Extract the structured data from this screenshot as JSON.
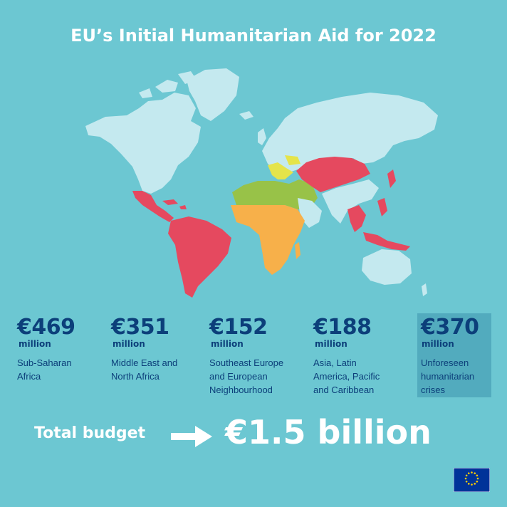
{
  "title": "EU’s Initial Humanitarian Aid for 2022",
  "colors": {
    "background": "#6cc7d2",
    "land": "#c4e9ef",
    "sub_saharan_africa": "#f7b04a",
    "middle_east_north_africa": "#98c248",
    "southeast_europe": "#e5e44a",
    "asia_latam_pacific": "#e5495f",
    "highlight_box": "#52abbe",
    "navy_text": "#0c3f7a",
    "eu_blue": "#003399",
    "eu_gold": "#ffcc00"
  },
  "allocations": [
    {
      "amount": "€469",
      "unit": "million",
      "region": [
        "Sub-Saharan",
        "Africa"
      ]
    },
    {
      "amount": "€351",
      "unit": "million",
      "region": [
        "Middle East and",
        "North Africa"
      ]
    },
    {
      "amount": "€152",
      "unit": "million",
      "region": [
        "Southeast Europe",
        "and European",
        "Neighbourhood"
      ]
    },
    {
      "amount": "€188",
      "unit": "million",
      "region": [
        "Asia, Latin",
        "America, Pacific",
        "and Caribbean"
      ]
    },
    {
      "amount": "€370",
      "unit": "million",
      "region": [
        "Unforeseen",
        "humanitarian",
        "crises"
      ]
    }
  ],
  "total": {
    "label": "Total budget",
    "value": "€1.5 billion"
  },
  "icons": {
    "arrow": "right-arrow-icon",
    "flag": "eu-flag-icon"
  }
}
